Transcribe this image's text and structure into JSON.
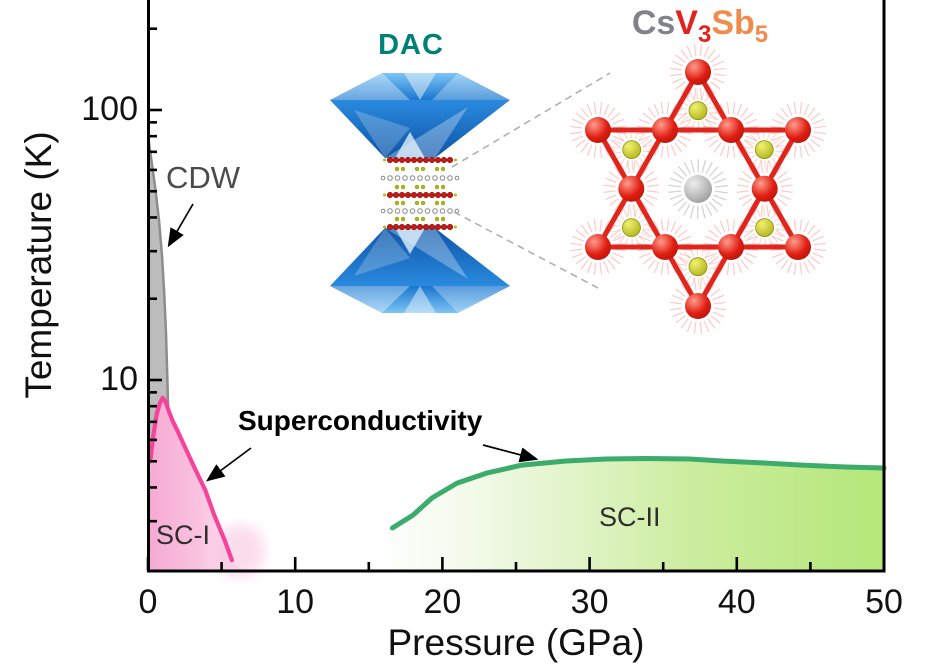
{
  "figure": {
    "y_axis_label": "Temperature (K)",
    "x_axis_label": "Pressure (GPa)",
    "annotations": {
      "cdw": "CDW",
      "sc1": "SC-I",
      "sc2": "SC-II",
      "superconductivity": "Superconductivity",
      "dac": "DAC"
    },
    "compound": {
      "el1": "Cs",
      "el2": "V",
      "sub2": "3",
      "el3": "Sb",
      "sub3": "5"
    },
    "colors": {
      "cdw_fill": "#bcbcbc",
      "cdw_edge": "#8d8d8d",
      "sc1_line": "#f5439b",
      "sc1_fill": "#f6a9d3",
      "sc2_line": "#3bac6b",
      "sc2_fill": "#b4e779",
      "dac_text": "#008077",
      "cs_grey": "#82828a",
      "v_red": "#e0231c",
      "sb_orange": "#f08c4b",
      "diamond_blue": "#1b76cf"
    }
  },
  "chart_data": {
    "type": "area",
    "title": "CsV3Sb5",
    "xlabel": "Pressure (GPa)",
    "ylabel": "Temperature (K)",
    "x_range": [
      0,
      50
    ],
    "y_scale": "log",
    "y_range": [
      1.9,
      260
    ],
    "grid": false,
    "legend": "none",
    "x_major_ticks": [
      0,
      10,
      20,
      30,
      40,
      50
    ],
    "x_minor_ticks": [
      5,
      15,
      25,
      35,
      45
    ],
    "y_major_ticks": [
      10,
      100
    ],
    "y_minor_ticks": [
      3,
      4,
      5,
      6,
      7,
      8,
      9,
      20,
      30,
      40,
      50,
      60,
      70,
      80,
      90,
      200
    ],
    "series": [
      {
        "name": "CDW boundary",
        "region": "CDW",
        "points": [
          [
            0.02,
            79
          ],
          [
            0.25,
            64
          ],
          [
            0.5,
            51
          ],
          [
            0.75,
            39
          ],
          [
            0.95,
            29
          ],
          [
            1.1,
            21
          ],
          [
            1.22,
            15
          ],
          [
            1.32,
            10
          ],
          [
            1.39,
            7
          ],
          [
            1.44,
            5
          ]
        ]
      },
      {
        "name": "SC-I dome",
        "region": "SC-I",
        "points": [
          [
            0.15,
            5.0
          ],
          [
            0.35,
            6.2
          ],
          [
            0.6,
            7.5
          ],
          [
            0.8,
            8.2
          ],
          [
            1.0,
            8.6
          ],
          [
            1.2,
            8.3
          ],
          [
            1.4,
            7.7
          ],
          [
            1.7,
            7.0
          ],
          [
            2.0,
            6.5
          ],
          [
            2.5,
            5.65
          ],
          [
            3.2,
            4.68
          ],
          [
            3.9,
            3.9
          ],
          [
            4.5,
            3.16
          ],
          [
            5.2,
            2.56
          ],
          [
            5.7,
            2.15
          ]
        ]
      },
      {
        "name": "SC-II dome",
        "region": "SC-II",
        "points": [
          [
            16.6,
            2.83
          ],
          [
            18.0,
            3.16
          ],
          [
            19.3,
            3.66
          ],
          [
            21.0,
            4.15
          ],
          [
            23.0,
            4.52
          ],
          [
            25.4,
            4.84
          ],
          [
            28.4,
            5.01
          ],
          [
            31.1,
            5.1
          ],
          [
            33.9,
            5.12
          ],
          [
            36.8,
            5.1
          ],
          [
            39.0,
            5.01
          ],
          [
            41.7,
            4.93
          ],
          [
            44.4,
            4.84
          ],
          [
            47.4,
            4.76
          ],
          [
            50.0,
            4.72
          ]
        ]
      }
    ]
  }
}
